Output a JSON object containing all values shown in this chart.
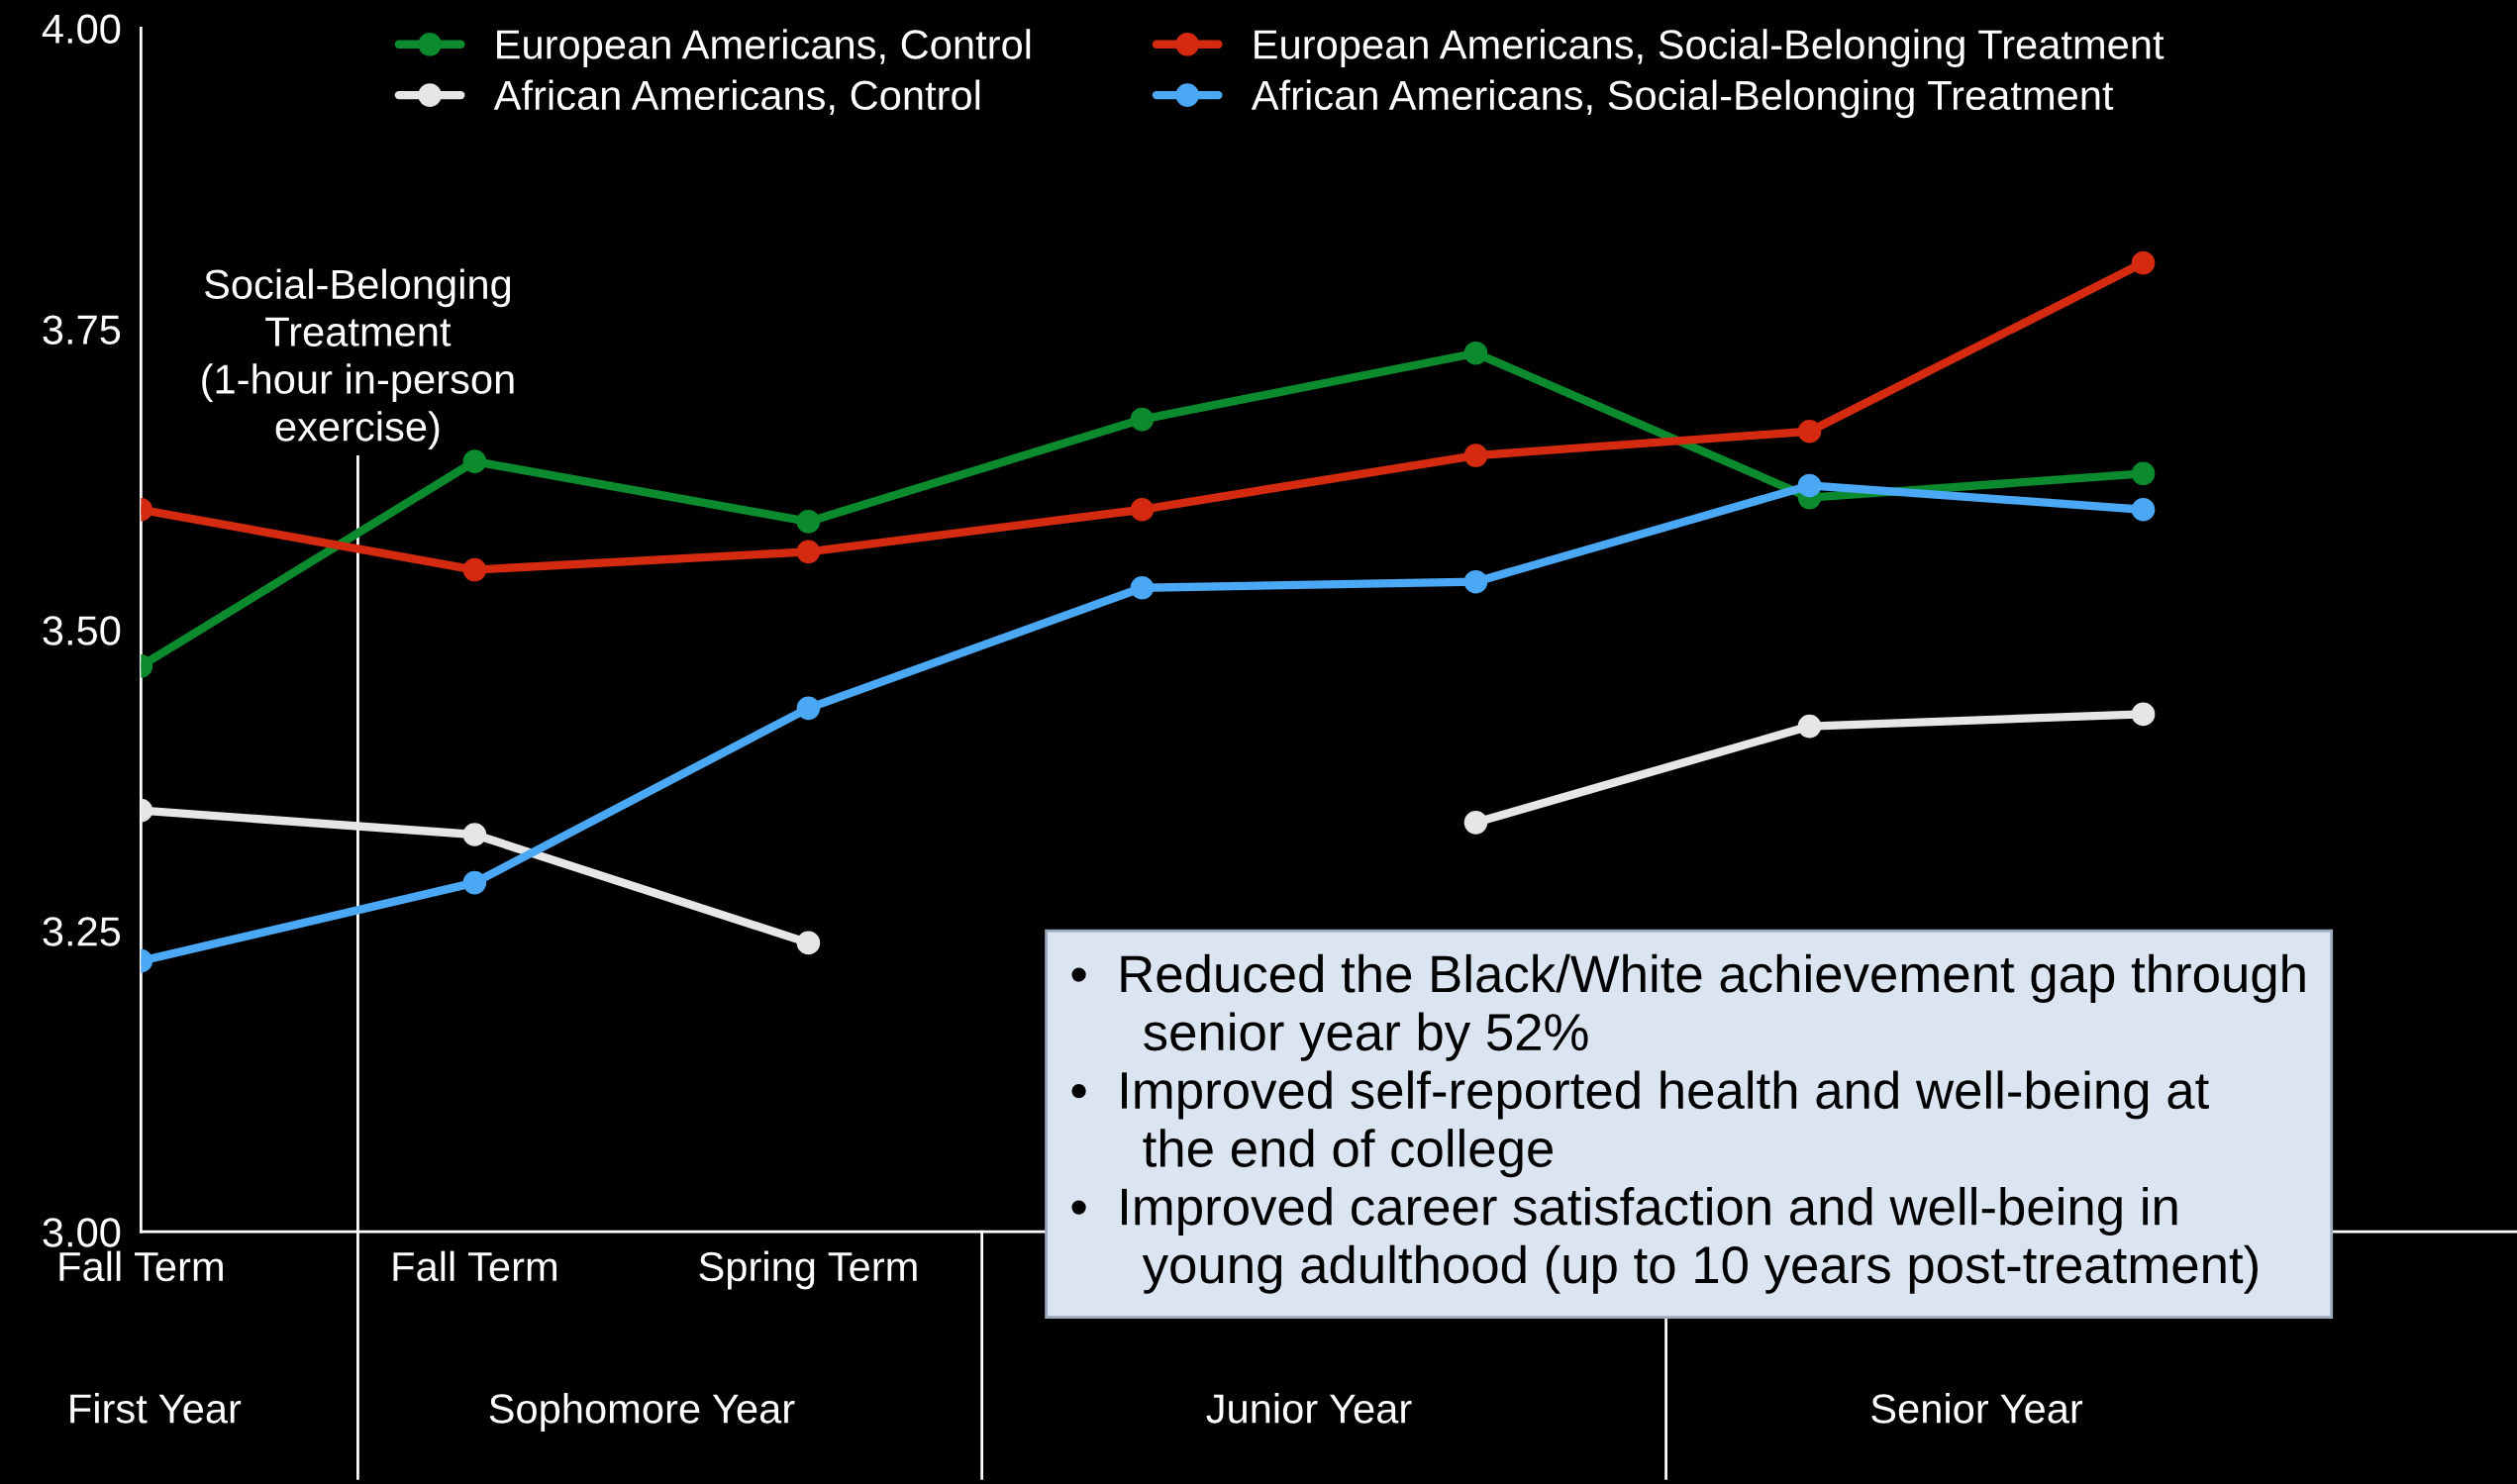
{
  "chart_data": {
    "type": "line",
    "categories": [
      "Fall Term",
      "Fall Term",
      "Spring Term",
      null,
      null,
      null,
      null
    ],
    "series": [
      {
        "name": "European Americans, Control",
        "color": "#0b8a2e",
        "values": [
          3.47,
          3.64,
          3.59,
          3.675,
          3.73,
          3.61,
          3.63
        ]
      },
      {
        "name": "African Americans, Control",
        "color": "#e6e6e6",
        "values": [
          3.35,
          3.33,
          3.24,
          null,
          3.34,
          3.42,
          3.43
        ]
      },
      {
        "name": "European Americans, Social-Belonging Treatment",
        "color": "#d42a10",
        "values": [
          3.6,
          3.55,
          3.565,
          3.6,
          3.645,
          3.665,
          3.805
        ]
      },
      {
        "name": "African Americans, Social-Belonging Treatment",
        "color": "#4aa8f5",
        "values": [
          3.225,
          3.29,
          3.435,
          3.535,
          3.54,
          3.62,
          3.6
        ]
      }
    ],
    "ylim": [
      3.0,
      4.0
    ],
    "yticks": [
      {
        "value": 3.0,
        "label": "3.00"
      },
      {
        "value": 3.25,
        "label": "3.25"
      },
      {
        "value": 3.5,
        "label": "3.50"
      },
      {
        "value": 3.75,
        "label": "3.75"
      },
      {
        "value": 4.0,
        "label": "4.00"
      }
    ],
    "annotations": [
      "First Year",
      "Sophomore Year",
      "Junior Year",
      "Senior Year",
      "Social-Belonging\nTreatment\n(1-hour in-person\nexercise)",
      "•  Reduced the Black/White achievement gap through\nsenior year by 52%",
      "•  Improved self-reported health and well-being at\nthe end of college",
      "•  Improved career satisfaction and well-being in\nyoung adulthood (up to 10 years post-treatment)"
    ],
    "marker": "circle",
    "line_style": "solid",
    "legend": "top",
    "grid": false
  }
}
